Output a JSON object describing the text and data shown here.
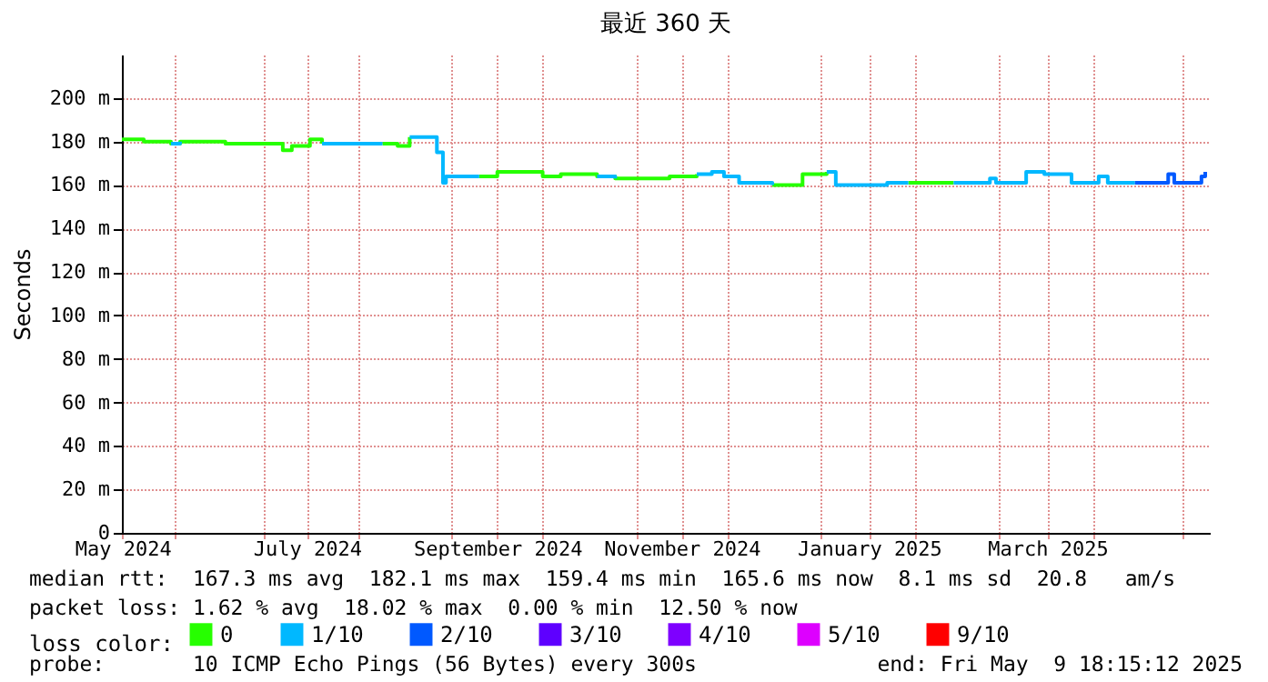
{
  "chart_data": {
    "type": "step",
    "title": "最近 360 天",
    "ylabel": "Seconds",
    "legend_title": "loss color:",
    "legend": "bottom",
    "grid": true,
    "x": [
      "2024-05-14T18:15",
      "2024-05-22",
      "2024-05-31",
      "2024-06-03",
      "2024-06-18",
      "2024-07-03",
      "2024-07-07",
      "2024-07-10",
      "2024-07-16",
      "2024-07-20",
      "2024-07-30",
      "2024-08-09",
      "2024-08-14",
      "2024-08-18",
      "2024-08-27",
      "2024-08-29",
      "2024-08-30",
      "2024-09-10",
      "2024-09-16",
      "2024-10-01",
      "2024-10-07",
      "2024-10-19",
      "2024-10-25",
      "2024-11-12",
      "2024-11-21",
      "2024-11-26",
      "2024-11-30",
      "2024-12-05",
      "2024-12-16",
      "2024-12-22",
      "2024-12-26",
      "2025-01-03",
      "2025-01-06",
      "2025-01-23",
      "2025-01-30",
      "2025-02-05",
      "2025-02-14",
      "2025-02-26",
      "2025-02-28",
      "2025-03-10",
      "2025-03-16",
      "2025-03-25",
      "2025-04-03",
      "2025-04-06",
      "2025-04-15",
      "2025-04-26",
      "2025-04-28",
      "2025-05-07",
      "2025-05-08T06:00"
    ],
    "series": [
      {
        "name": "0",
        "color": "#26ff00",
        "values": [
          181,
          180,
          179,
          180,
          179,
          179,
          176,
          178,
          181,
          179,
          null,
          179,
          178,
          182,
          null,
          null,
          null,
          164,
          166,
          164,
          165,
          164,
          163,
          164,
          165,
          null,
          null,
          null,
          160,
          160,
          165,
          166,
          null,
          null,
          161,
          161,
          161,
          null,
          null,
          null,
          null,
          null,
          null,
          null,
          null,
          null,
          null,
          null,
          null
        ]
      },
      {
        "name": "1/10",
        "color": "#00b8ff",
        "values": [
          null,
          null,
          179,
          180,
          null,
          null,
          null,
          null,
          null,
          179,
          179,
          179,
          null,
          182,
          175,
          161,
          164,
          164,
          null,
          null,
          null,
          164,
          163,
          null,
          165,
          166,
          164,
          161,
          160,
          null,
          null,
          166,
          160,
          161,
          161,
          null,
          161,
          163,
          161,
          166,
          165,
          161,
          164,
          161,
          161,
          null,
          null,
          null,
          null
        ]
      },
      {
        "name": "2/10",
        "color": "#0059ff",
        "values": [
          null,
          null,
          null,
          null,
          null,
          null,
          null,
          null,
          null,
          null,
          null,
          null,
          null,
          null,
          null,
          null,
          null,
          null,
          null,
          null,
          null,
          null,
          null,
          null,
          null,
          null,
          null,
          null,
          null,
          null,
          null,
          null,
          null,
          null,
          null,
          null,
          null,
          null,
          null,
          null,
          null,
          null,
          null,
          null,
          161,
          165,
          161,
          164,
          166
        ]
      },
      {
        "name": "3/10",
        "color": "#5e00ff",
        "values": [
          null,
          null,
          null,
          null,
          null,
          null,
          null,
          null,
          null,
          null,
          null,
          null,
          null,
          null,
          null,
          null,
          null,
          null,
          null,
          null,
          null,
          null,
          null,
          null,
          null,
          null,
          null,
          null,
          null,
          null,
          null,
          null,
          null,
          null,
          null,
          null,
          null,
          null,
          null,
          null,
          null,
          null,
          null,
          null,
          null,
          null,
          null,
          null,
          null
        ]
      },
      {
        "name": "4/10",
        "color": "#7e00ff",
        "values": [
          null,
          null,
          null,
          null,
          null,
          null,
          null,
          null,
          null,
          null,
          null,
          null,
          null,
          null,
          null,
          null,
          null,
          null,
          null,
          null,
          null,
          null,
          null,
          null,
          null,
          null,
          null,
          null,
          null,
          null,
          null,
          null,
          null,
          null,
          null,
          null,
          null,
          null,
          null,
          null,
          null,
          null,
          null,
          null,
          null,
          null,
          null,
          null,
          null
        ]
      },
      {
        "name": "5/10",
        "color": "#dd00ff",
        "values": [
          null,
          null,
          null,
          null,
          null,
          null,
          null,
          null,
          null,
          null,
          null,
          null,
          null,
          null,
          null,
          null,
          null,
          null,
          null,
          null,
          null,
          null,
          null,
          null,
          null,
          null,
          null,
          null,
          null,
          null,
          null,
          null,
          null,
          null,
          null,
          null,
          null,
          null,
          null,
          null,
          null,
          null,
          null,
          null,
          null,
          null,
          null,
          null,
          null
        ]
      },
      {
        "name": "9/10",
        "color": "#ff0000",
        "values": [
          null,
          null,
          null,
          null,
          null,
          null,
          null,
          null,
          null,
          null,
          null,
          null,
          null,
          null,
          null,
          null,
          null,
          null,
          null,
          null,
          null,
          null,
          null,
          null,
          null,
          null,
          null,
          null,
          null,
          null,
          null,
          null,
          null,
          null,
          null,
          null,
          null,
          null,
          null,
          null,
          null,
          null,
          null,
          null,
          null,
          null,
          null,
          null,
          null
        ]
      }
    ],
    "xlim": [
      "2024-05-14T18:15",
      "2025-05-09T18:15"
    ],
    "xticks": [
      {
        "value": "2024-05-15",
        "label": "May 2024"
      },
      {
        "value": "2024-06-01",
        "label": null
      },
      {
        "value": "2024-07-01",
        "label": null
      },
      {
        "value": "2024-07-15",
        "label": "July 2024"
      },
      {
        "value": "2024-08-01",
        "label": null
      },
      {
        "value": "2024-09-01",
        "label": null
      },
      {
        "value": "2024-09-16",
        "label": "September 2024"
      },
      {
        "value": "2024-10-01",
        "label": null
      },
      {
        "value": "2024-11-01",
        "label": null
      },
      {
        "value": "2024-11-16",
        "label": "November 2024"
      },
      {
        "value": "2024-12-01",
        "label": null
      },
      {
        "value": "2025-01-01",
        "label": null
      },
      {
        "value": "2025-01-17",
        "label": "January 2025"
      },
      {
        "value": "2025-02-01",
        "label": null
      },
      {
        "value": "2025-03-01",
        "label": null
      },
      {
        "value": "2025-03-17",
        "label": "March 2025"
      },
      {
        "value": "2025-04-01",
        "label": null
      },
      {
        "value": "2025-05-01",
        "label": null
      }
    ],
    "ylim": [
      0,
      220
    ],
    "yticks": [
      0,
      {
        "value": 20,
        "label": "20 m"
      },
      {
        "value": 40,
        "label": "40 m"
      },
      {
        "value": 60,
        "label": "60 m"
      },
      {
        "value": 80,
        "label": "80 m"
      },
      {
        "value": 100,
        "label": "100 m"
      },
      {
        "value": 120,
        "label": "120 m"
      },
      {
        "value": 140,
        "label": "140 m"
      },
      {
        "value": 160,
        "label": "160 m"
      },
      {
        "value": 180,
        "label": "180 m"
      },
      {
        "value": 200,
        "label": "200 m"
      }
    ],
    "annotations": [
      "median rtt:  167.3 ms avg  182.1 ms max  159.4 ms min  165.6 ms now  8.1 ms sd  20.8   am/s",
      "packet loss: 1.62 % avg  18.02 % max  0.00 % min  12.50 % now",
      "probe:       10 ICMP Echo Pings (56 Bytes) every 300s",
      "end: Fri May  9 18:15:12 2025"
    ]
  }
}
